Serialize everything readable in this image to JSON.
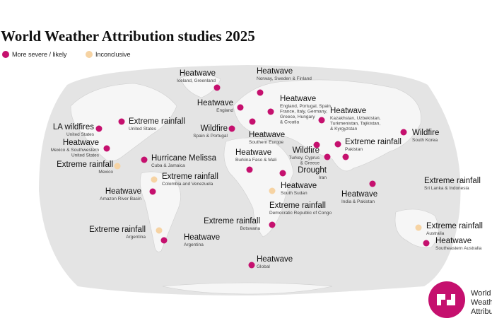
{
  "header": {
    "title": "World Weather Attribution studies 2025"
  },
  "legend": [
    {
      "label": "More severe / likely",
      "color": "#c5106e"
    },
    {
      "label": "Inconclusive",
      "color": "#f6d3a3"
    }
  ],
  "markers": [
    {
      "label": "Heatwave",
      "sublabel": [
        "Iceland, Greenland"
      ],
      "color": "#c5106e"
    },
    {
      "label": "Heatwave",
      "sublabel": [
        "Norway, Sweden & Finland"
      ],
      "color": "#c5106e"
    },
    {
      "label": "Heatwave",
      "sublabel": [
        "England"
      ],
      "color": "#c5106e"
    },
    {
      "label": "Heatwave",
      "sublabel": [
        "England, Portugal, Spain,",
        "France, Italy, Germany,",
        "Greece, Hungary",
        "& Croatia"
      ],
      "color": "#c5106e"
    },
    {
      "label": "Wildfire",
      "sublabel": [
        "Spain & Portugal"
      ],
      "color": "#c5106e"
    },
    {
      "label": "Heatwave",
      "sublabel": [
        "Southern Europe"
      ],
      "color": "#c5106e"
    },
    {
      "label": "Heatwave",
      "sublabel": [
        "Kazakhstan, Uzbekistan,",
        "Turkmenistan, Tajikistan,",
        "& Kyrgyzstan"
      ],
      "color": "#c5106e"
    },
    {
      "label": "Wildfire",
      "sublabel": [
        "South Korea"
      ],
      "color": "#c5106e"
    },
    {
      "label": "Extreme rainfall",
      "sublabel": [
        "Pakistan"
      ],
      "color": "#c5106e"
    },
    {
      "label": "Wildfire",
      "sublabel": [
        "Turkey, Cyprus",
        "& Greece"
      ],
      "color": "#c5106e"
    },
    {
      "label": "Drought",
      "sublabel": [
        "Iran"
      ],
      "color": "#c5106e"
    },
    {
      "label": "Heatwave",
      "sublabel": [
        "India & Pakistan"
      ],
      "color": "#c5106e"
    },
    {
      "label": "Extreme rainfall",
      "sublabel": [
        "Sri Lanka & Indonesia"
      ],
      "color": "#c5106e"
    },
    {
      "label": "Extreme rainfall",
      "sublabel": [
        "Australia"
      ],
      "color": "#f6d3a3"
    },
    {
      "label": "Heatwave",
      "sublabel": [
        "Southeastern Australia"
      ],
      "color": "#c5106e"
    },
    {
      "label": "Heatwave",
      "sublabel": [
        "Global"
      ],
      "color": "#c5106e"
    },
    {
      "label": "Extreme rainfall",
      "sublabel": [
        "Botswana"
      ],
      "color": "#c5106e"
    },
    {
      "label": "Extreme rainfall",
      "sublabel": [
        "Democratic Republic of Congo"
      ],
      "color": "#f6d3a3"
    },
    {
      "label": "Heatwave",
      "sublabel": [
        "South Sudan"
      ],
      "color": "#c5106e"
    },
    {
      "label": "Heatwave",
      "sublabel": [
        "Burkina Faso & Mali"
      ],
      "color": "#c5106e"
    },
    {
      "label": "Hurricane Melissa",
      "sublabel": [
        "Cuba & Jamaica"
      ],
      "color": "#c5106e"
    },
    {
      "label": "Extreme rainfall",
      "sublabel": [
        "Colombia and Venezuela"
      ],
      "color": "#f6d3a3"
    },
    {
      "label": "Extreme rainfall",
      "sublabel": [
        "Mexico"
      ],
      "color": "#f6d3a3"
    },
    {
      "label": "Heatwave",
      "sublabel": [
        "Mexico & Southwestern",
        "United States"
      ],
      "color": "#c5106e"
    },
    {
      "label": "LA wildfires",
      "sublabel": [
        "United States"
      ],
      "color": "#c5106e"
    },
    {
      "label": "Extreme rainfall",
      "sublabel": [
        "United States"
      ],
      "color": "#c5106e"
    },
    {
      "label": "Heatwave",
      "sublabel": [
        "Amazon River Basin"
      ],
      "color": "#c5106e"
    },
    {
      "label": "Extreme rainfall",
      "sublabel": [
        "Argentina"
      ],
      "color": "#f6d3a3"
    },
    {
      "label": "Heatwave",
      "sublabel": [
        "Argentina"
      ],
      "color": "#c5106e"
    }
  ],
  "logo": {
    "lines": [
      "World",
      "Weather",
      "Attribution"
    ]
  }
}
